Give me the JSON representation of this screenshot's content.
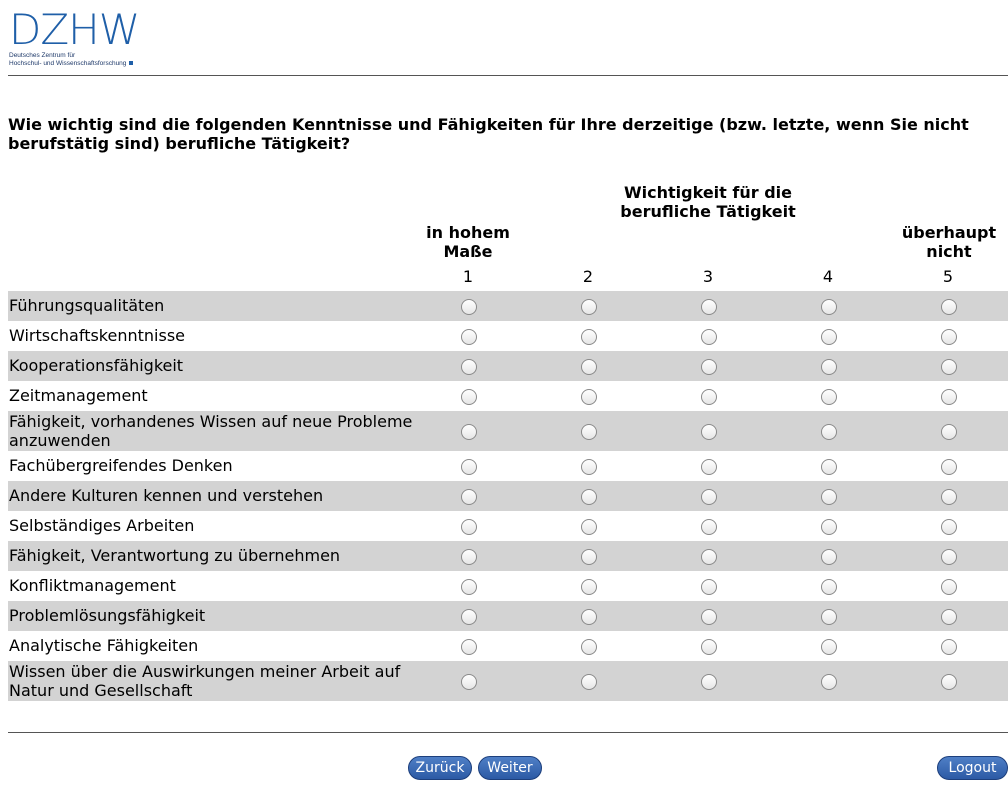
{
  "logo": {
    "wordmark": "DZHW",
    "subtitle_line1": "Deutsches Zentrum für",
    "subtitle_line2": "Hochschul- und Wissenschaftsforschung"
  },
  "question": "Wie wichtig sind die folgenden Kenntnisse und Fähigkeiten für Ihre derzeitige (bzw. letzte, wenn Sie nicht berufstätig sind) berufliche Tätigkeit?",
  "scale": {
    "group_header_line1": "Wichtigkeit für die",
    "group_header_line2": "berufliche Tätigkeit",
    "left_anchor_line1": "in hohem",
    "left_anchor_line2": "Maße",
    "right_anchor_line1": "überhaupt",
    "right_anchor_line2": "nicht",
    "columns": [
      "1",
      "2",
      "3",
      "4",
      "5"
    ]
  },
  "items": [
    {
      "label": "Führungsqualitäten"
    },
    {
      "label": "Wirtschaftskenntnisse"
    },
    {
      "label": "Kooperationsfähigkeit"
    },
    {
      "label": "Zeitmanagement"
    },
    {
      "label": "Fähigkeit, vorhandenes Wissen auf neue Probleme anzuwenden"
    },
    {
      "label": "Fachübergreifendes Denken"
    },
    {
      "label": "Andere Kulturen kennen und verstehen"
    },
    {
      "label": "Selbständiges Arbeiten"
    },
    {
      "label": "Fähigkeit, Verantwortung zu übernehmen"
    },
    {
      "label": "Konfliktmanagement"
    },
    {
      "label": "Problemlösungsfähigkeit"
    },
    {
      "label": "Analytische Fähigkeiten"
    },
    {
      "label": "Wissen über die Auswirkungen meiner Arbeit auf Natur und Gesellschaft"
    }
  ],
  "buttons": {
    "back": "Zurück",
    "next": "Weiter",
    "logout": "Logout"
  },
  "colors": {
    "brand_blue": "#1f5fa8",
    "row_shade": "#d3d3d3",
    "button_blue": "#2c5aa5"
  }
}
